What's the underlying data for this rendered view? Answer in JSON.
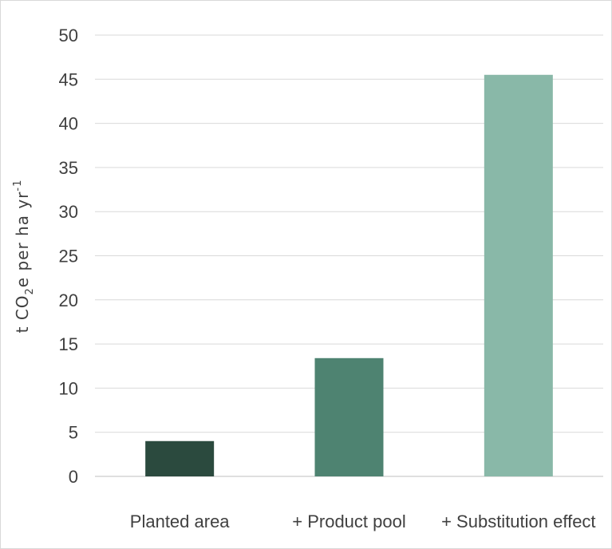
{
  "chart_data": {
    "type": "bar",
    "title": "",
    "categories": [
      "Planted area",
      "+ Product pool",
      "+ Substitution effect"
    ],
    "values": [
      4.0,
      13.4,
      45.5
    ],
    "colors": [
      "#2b4a3e",
      "#4e8371",
      "#89b8a8"
    ],
    "ylabel": {
      "prefix": "t CO",
      "subscript": "2",
      "middle": "e per ha yr",
      "superscript": "-1"
    },
    "xlabel": "",
    "ylim": [
      0,
      50
    ],
    "yticks": [
      "0",
      "5",
      "10",
      "15",
      "20",
      "25",
      "30",
      "35",
      "40",
      "45",
      "50"
    ],
    "grid": true,
    "legend": "none"
  }
}
